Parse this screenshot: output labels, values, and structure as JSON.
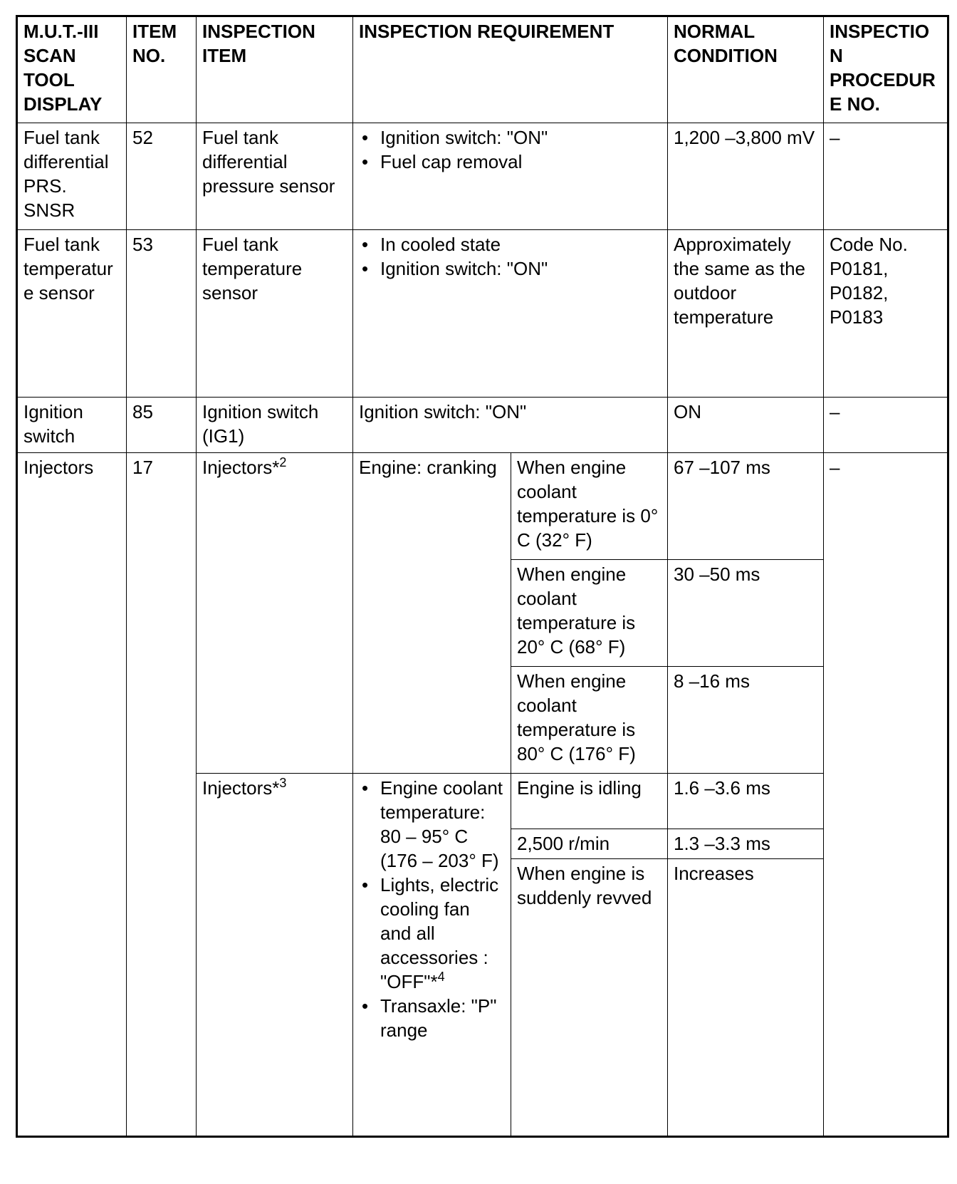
{
  "headers": {
    "display": "M.U.T.-III SCAN TOOL DISPLAY",
    "item_no": "ITEM NO.",
    "item": "INSPECTION ITEM",
    "requirement": "INSPECTION REQUIREMENT",
    "normal": "NORMAL CONDITION",
    "procedure": "INSPECTION PROCEDURE NO."
  },
  "rows": [
    {
      "display": "Fuel tank differential PRS. SNSR",
      "item_no": "52",
      "item": "Fuel tank differential pressure sensor",
      "requirement": [
        "Ignition switch: \"ON\"",
        "Fuel cap removal"
      ],
      "normal": "1,200 –3,800 mV",
      "procedure": "–"
    },
    {
      "display": "Fuel tank temperature sensor",
      "item_no": "53",
      "item": "Fuel tank temperature sensor",
      "requirement": [
        "In cooled state",
        "Ignition switch: \"ON\""
      ],
      "normal": "Approximately the same as the outdoor temperature",
      "procedure": "Code No. P0181, P0182, P0183"
    },
    {
      "display": "Ignition switch",
      "item_no": "85",
      "item": "Ignition switch (IG1)",
      "requirement": "Ignition switch: \"ON\"",
      "normal": "ON",
      "procedure": "–"
    }
  ],
  "injectors": {
    "display": "Injectors",
    "item_no": "17",
    "procedure": "–",
    "group1": {
      "item": "Injectors*",
      "item_sup": "2",
      "requirement": "Engine: cranking",
      "conditions": [
        {
          "condition": "When engine coolant temperature is 0° C (32° F)",
          "normal": "67 –107 ms"
        },
        {
          "condition": "When engine coolant temperature is 20° C (68° F)",
          "normal": "30 –50 ms"
        },
        {
          "condition": "When engine coolant temperature is 80° C (176° F)",
          "normal": "8 –16 ms"
        }
      ]
    },
    "group2": {
      "item": "Injectors*",
      "item_sup": "3",
      "requirement": [
        "Engine coolant temperature: 80 – 95° C (176 – 203° F)",
        "Lights, electric cooling fan and all accessories : \"OFF\"*",
        "Transaxle: \"P\" range"
      ],
      "requirement_sup": "4",
      "conditions": [
        {
          "condition": "Engine is idling",
          "normal": "1.6 –3.6 ms"
        },
        {
          "condition": "2,500 r/min",
          "normal": "1.3 –3.3 ms"
        },
        {
          "condition": "When engine is suddenly revved",
          "normal": "Increases"
        }
      ]
    }
  }
}
